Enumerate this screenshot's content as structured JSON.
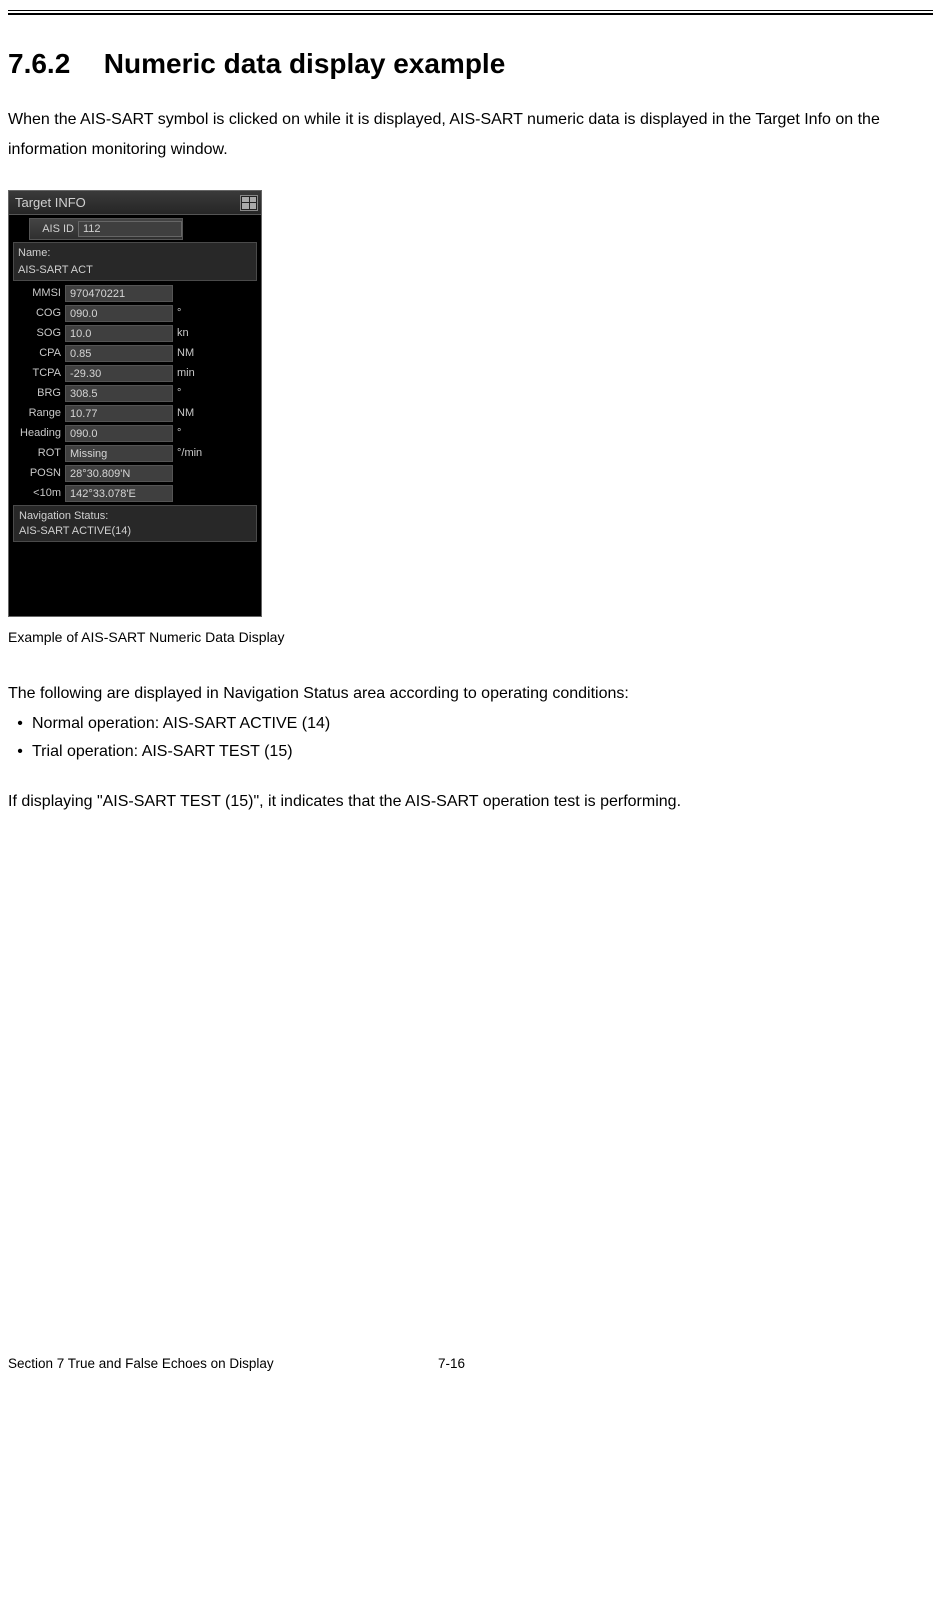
{
  "heading": {
    "num": "7.6.2",
    "title": "Numeric data display example"
  },
  "intro": "When the AIS-SART symbol is clicked on while it is displayed, AIS-SART numeric data is displayed in the Target Info on the information monitoring window.",
  "panel": {
    "title": "Target INFO",
    "ais_id": {
      "label": "AIS ID",
      "value": "112"
    },
    "name": {
      "label": "Name:",
      "value": "AIS-SART ACT"
    },
    "rows": [
      {
        "label": "MMSI",
        "value": "970470221",
        "unit": ""
      },
      {
        "label": "COG",
        "value": "090.0",
        "unit": "°"
      },
      {
        "label": "SOG",
        "value": "10.0",
        "unit": "kn"
      },
      {
        "label": "CPA",
        "value": "0.85",
        "unit": "NM"
      },
      {
        "label": "TCPA",
        "value": "-29.30",
        "unit": "min"
      },
      {
        "label": "BRG",
        "value": "308.5",
        "unit": "°"
      },
      {
        "label": "Range",
        "value": "10.77",
        "unit": "NM"
      },
      {
        "label": "Heading",
        "value": "090.0",
        "unit": "°"
      },
      {
        "label": "ROT",
        "value": "Missing",
        "unit": "°/min"
      },
      {
        "label": "POSN",
        "value": "28°30.809'N",
        "unit": ""
      },
      {
        "label": "<10m",
        "value": "142°33.078'E",
        "unit": ""
      }
    ],
    "nav_status": {
      "label": "Navigation Status:",
      "value": "AIS-SART ACTIVE(14)"
    }
  },
  "caption": "Example of AIS-SART Numeric Data Display",
  "lead": "The following are displayed in Navigation Status area according to operating conditions:",
  "bullets": [
    "Normal operation: AIS-SART ACTIVE (14)",
    "Trial operation: AIS-SART TEST (15)"
  ],
  "note": "If displaying \"AIS-SART TEST (15)\", it indicates that the AIS-SART operation test is performing.",
  "footer": {
    "section": "Section 7    True and False Echoes on Display",
    "page": "7-16"
  }
}
